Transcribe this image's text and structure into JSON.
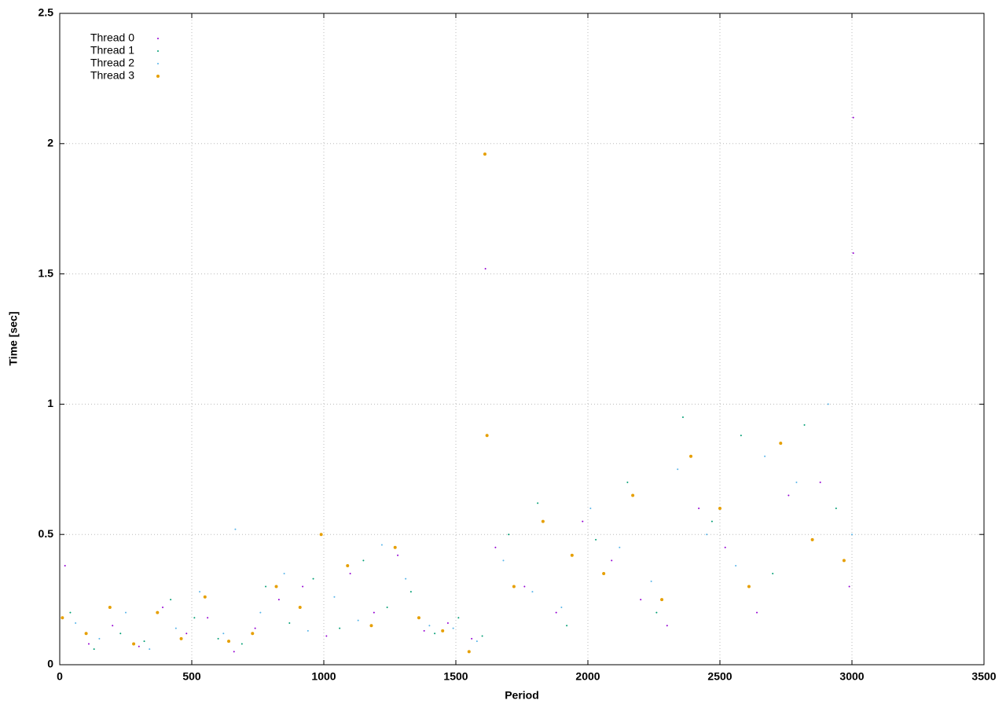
{
  "chart_data": {
    "type": "scatter",
    "xlabel": "Period",
    "ylabel": "Time [sec]",
    "xlim": [
      0,
      3500
    ],
    "xticks": [
      0,
      500,
      1000,
      1500,
      2000,
      2500,
      3000,
      3500
    ],
    "ylim": [
      0,
      2.5
    ],
    "yticks": [
      0,
      0.5,
      1,
      1.5,
      2,
      2.5
    ],
    "grid": true,
    "legend": "upper-left",
    "series": [
      {
        "name": "Thread 0",
        "color": "#9400d3",
        "x": [
          20,
          110,
          200,
          300,
          390,
          480,
          560,
          660,
          740,
          830,
          920,
          1010,
          1100,
          1190,
          1280,
          1380,
          1470,
          1560,
          1612,
          1650,
          1760,
          1880,
          1980,
          2090,
          2200,
          2300,
          2420,
          2520,
          2640,
          2760,
          2880,
          2990,
          3005,
          3005
        ],
        "values": [
          0.38,
          0.08,
          0.15,
          0.07,
          0.22,
          0.12,
          0.18,
          0.05,
          0.14,
          0.25,
          0.3,
          0.11,
          0.35,
          0.2,
          0.42,
          0.13,
          0.16,
          0.1,
          1.52,
          0.45,
          0.3,
          0.2,
          0.55,
          0.4,
          0.25,
          0.15,
          0.6,
          0.45,
          0.2,
          0.65,
          0.7,
          0.3,
          2.1,
          1.58
        ]
      },
      {
        "name": "Thread 1",
        "color": "#009e73",
        "x": [
          40,
          130,
          230,
          320,
          420,
          510,
          600,
          690,
          780,
          870,
          960,
          1060,
          1150,
          1240,
          1330,
          1420,
          1510,
          1600,
          1700,
          1810,
          1920,
          2030,
          2150,
          2260,
          2360,
          2470,
          2580,
          2700,
          2820,
          2940
        ],
        "values": [
          0.2,
          0.06,
          0.12,
          0.09,
          0.25,
          0.18,
          0.1,
          0.08,
          0.3,
          0.16,
          0.33,
          0.14,
          0.4,
          0.22,
          0.28,
          0.12,
          0.18,
          0.11,
          0.5,
          0.62,
          0.15,
          0.48,
          0.7,
          0.2,
          0.95,
          0.55,
          0.88,
          0.35,
          0.92,
          0.6
        ]
      },
      {
        "name": "Thread 2",
        "color": "#56b4e9",
        "x": [
          60,
          150,
          250,
          340,
          440,
          530,
          620,
          665,
          760,
          850,
          940,
          1040,
          1130,
          1220,
          1310,
          1400,
          1490,
          1580,
          1680,
          1790,
          1900,
          2010,
          2120,
          2240,
          2340,
          2450,
          2560,
          2670,
          2790,
          2910,
          3000
        ],
        "values": [
          0.16,
          0.1,
          0.2,
          0.06,
          0.14,
          0.28,
          0.12,
          0.52,
          0.2,
          0.35,
          0.13,
          0.26,
          0.17,
          0.46,
          0.33,
          0.15,
          0.14,
          0.09,
          0.4,
          0.28,
          0.22,
          0.6,
          0.45,
          0.32,
          0.75,
          0.5,
          0.38,
          0.8,
          0.7,
          1.0,
          0.5
        ]
      },
      {
        "name": "Thread 3",
        "color": "#e69f00",
        "x": [
          10,
          100,
          190,
          280,
          370,
          460,
          550,
          640,
          730,
          820,
          910,
          990,
          1090,
          1180,
          1270,
          1360,
          1450,
          1550,
          1610,
          1618,
          1720,
          1830,
          1940,
          2060,
          2170,
          2280,
          2390,
          2500,
          2610,
          2730,
          2850,
          2970
        ],
        "values": [
          0.18,
          0.12,
          0.22,
          0.08,
          0.2,
          0.1,
          0.26,
          0.09,
          0.12,
          0.3,
          0.22,
          0.5,
          0.38,
          0.15,
          0.45,
          0.18,
          0.13,
          0.05,
          1.96,
          0.88,
          0.3,
          0.55,
          0.42,
          0.35,
          0.65,
          0.25,
          0.8,
          0.6,
          0.3,
          0.85,
          0.48,
          0.4
        ]
      }
    ]
  }
}
